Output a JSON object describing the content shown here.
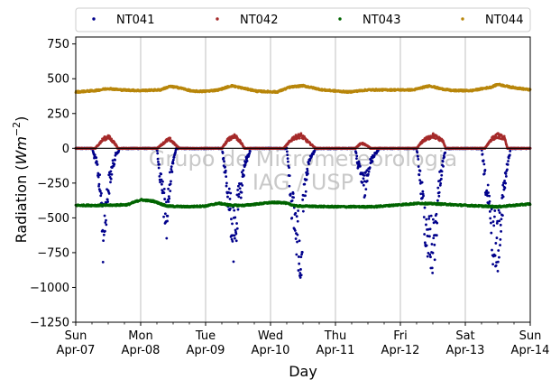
{
  "chart_data": {
    "type": "scatter",
    "title": "",
    "xlabel": "Day",
    "ylabel_main": "Radiation (",
    "ylabel_unit": "Wm",
    "ylabel_exp": "−2",
    "ylabel_close": ")",
    "ylim": [
      -1250,
      800
    ],
    "yticks": [
      {
        "value": 750,
        "label": "750"
      },
      {
        "value": 500,
        "label": "500"
      },
      {
        "value": 250,
        "label": "250"
      },
      {
        "value": 0,
        "label": "0"
      },
      {
        "value": -250,
        "label": "−250"
      },
      {
        "value": -500,
        "label": "−500"
      },
      {
        "value": -750,
        "label": "−750"
      },
      {
        "value": -1000,
        "label": "−1000"
      },
      {
        "value": -1250,
        "label": "−1250"
      }
    ],
    "xlim_days": [
      0,
      7
    ],
    "xticks": [
      {
        "day": 0,
        "line1": "Sun",
        "line2": "Apr-07"
      },
      {
        "day": 1,
        "line1": "Mon",
        "line2": "Apr-08"
      },
      {
        "day": 2,
        "line1": "Tue",
        "line2": "Apr-09"
      },
      {
        "day": 3,
        "line1": "Wed",
        "line2": "Apr-10"
      },
      {
        "day": 4,
        "line1": "Thu",
        "line2": "Apr-11"
      },
      {
        "day": 5,
        "line1": "Fri",
        "line2": "Apr-12"
      },
      {
        "day": 6,
        "line1": "Sat",
        "line2": "Apr-13"
      },
      {
        "day": 7,
        "line1": "Sun",
        "line2": "Apr-14"
      }
    ],
    "grid": "vertical",
    "legend_placement": "top, outside, 4 columns",
    "watermark": [
      "Grupo de Micrometeorologia",
      "IAG / USP"
    ],
    "series": [
      {
        "name": "NT041",
        "color": "#00008b",
        "profile": [
          [
            0.0,
            0
          ],
          [
            0.25,
            0
          ],
          [
            0.33,
            -150
          ],
          [
            0.4,
            -480
          ],
          [
            0.42,
            -780
          ],
          [
            0.45,
            -600
          ],
          [
            0.5,
            -350
          ],
          [
            0.55,
            -200
          ],
          [
            0.62,
            -50
          ],
          [
            0.7,
            0
          ],
          [
            1.25,
            0
          ],
          [
            1.3,
            -250
          ],
          [
            1.4,
            -650
          ],
          [
            1.45,
            -300
          ],
          [
            1.5,
            -100
          ],
          [
            1.55,
            0
          ],
          [
            2.25,
            0
          ],
          [
            2.3,
            -200
          ],
          [
            2.45,
            -850
          ],
          [
            2.5,
            -500
          ],
          [
            2.6,
            -150
          ],
          [
            2.7,
            0
          ],
          [
            3.25,
            0
          ],
          [
            3.32,
            -450
          ],
          [
            3.42,
            -780
          ],
          [
            3.47,
            -930
          ],
          [
            3.52,
            -400
          ],
          [
            3.6,
            -100
          ],
          [
            3.7,
            0
          ],
          [
            4.3,
            0
          ],
          [
            4.35,
            -150
          ],
          [
            4.45,
            -350
          ],
          [
            4.5,
            -180
          ],
          [
            4.6,
            -50
          ],
          [
            4.7,
            0
          ],
          [
            5.25,
            0
          ],
          [
            5.3,
            -250
          ],
          [
            5.4,
            -720
          ],
          [
            5.5,
            -880
          ],
          [
            5.55,
            -650
          ],
          [
            5.6,
            -300
          ],
          [
            5.7,
            0
          ],
          [
            6.25,
            0
          ],
          [
            6.32,
            -350
          ],
          [
            6.42,
            -760
          ],
          [
            6.5,
            -830
          ],
          [
            6.55,
            -550
          ],
          [
            6.65,
            -150
          ],
          [
            6.7,
            0
          ],
          [
            7.0,
            0
          ]
        ]
      },
      {
        "name": "NT042",
        "color": "#a52a2a",
        "profile": [
          [
            0.0,
            0
          ],
          [
            0.3,
            0
          ],
          [
            0.42,
            70
          ],
          [
            0.5,
            90
          ],
          [
            0.6,
            40
          ],
          [
            0.65,
            0
          ],
          [
            1.25,
            0
          ],
          [
            1.4,
            60
          ],
          [
            1.45,
            70
          ],
          [
            1.55,
            20
          ],
          [
            1.6,
            0
          ],
          [
            2.25,
            0
          ],
          [
            2.35,
            70
          ],
          [
            2.45,
            100
          ],
          [
            2.55,
            40
          ],
          [
            2.6,
            0
          ],
          [
            3.2,
            0
          ],
          [
            3.35,
            80
          ],
          [
            3.47,
            100
          ],
          [
            3.6,
            40
          ],
          [
            3.7,
            0
          ],
          [
            4.3,
            0
          ],
          [
            4.4,
            40
          ],
          [
            4.45,
            30
          ],
          [
            4.55,
            0
          ],
          [
            5.25,
            0
          ],
          [
            5.35,
            60
          ],
          [
            5.5,
            100
          ],
          [
            5.65,
            60
          ],
          [
            5.7,
            0
          ],
          [
            6.3,
            0
          ],
          [
            6.4,
            70
          ],
          [
            6.5,
            100
          ],
          [
            6.6,
            80
          ],
          [
            6.65,
            0
          ],
          [
            7.0,
            0
          ]
        ]
      },
      {
        "name": "NT043",
        "color": "#006400",
        "profile": [
          [
            0.0,
            -410
          ],
          [
            0.5,
            -410
          ],
          [
            0.8,
            -405
          ],
          [
            1.0,
            -370
          ],
          [
            1.2,
            -380
          ],
          [
            1.4,
            -415
          ],
          [
            1.7,
            -420
          ],
          [
            2.0,
            -415
          ],
          [
            2.2,
            -395
          ],
          [
            2.4,
            -410
          ],
          [
            2.6,
            -410
          ],
          [
            3.0,
            -390
          ],
          [
            3.2,
            -390
          ],
          [
            3.4,
            -415
          ],
          [
            4.0,
            -420
          ],
          [
            4.6,
            -420
          ],
          [
            5.0,
            -405
          ],
          [
            5.3,
            -395
          ],
          [
            5.6,
            -400
          ],
          [
            6.0,
            -410
          ],
          [
            6.5,
            -420
          ],
          [
            7.0,
            -400
          ]
        ]
      },
      {
        "name": "NT044",
        "color": "#b8860b",
        "profile": [
          [
            0.0,
            405
          ],
          [
            0.3,
            415
          ],
          [
            0.5,
            430
          ],
          [
            0.7,
            420
          ],
          [
            1.0,
            415
          ],
          [
            1.3,
            420
          ],
          [
            1.45,
            445
          ],
          [
            1.6,
            435
          ],
          [
            1.8,
            410
          ],
          [
            2.0,
            410
          ],
          [
            2.2,
            420
          ],
          [
            2.4,
            450
          ],
          [
            2.5,
            440
          ],
          [
            2.8,
            410
          ],
          [
            3.1,
            405
          ],
          [
            3.3,
            440
          ],
          [
            3.5,
            450
          ],
          [
            3.8,
            420
          ],
          [
            4.2,
            405
          ],
          [
            4.5,
            420
          ],
          [
            4.8,
            420
          ],
          [
            5.2,
            420
          ],
          [
            5.45,
            450
          ],
          [
            5.6,
            430
          ],
          [
            5.8,
            415
          ],
          [
            6.1,
            415
          ],
          [
            6.4,
            440
          ],
          [
            6.5,
            460
          ],
          [
            6.7,
            440
          ],
          [
            7.0,
            420
          ]
        ]
      }
    ]
  }
}
